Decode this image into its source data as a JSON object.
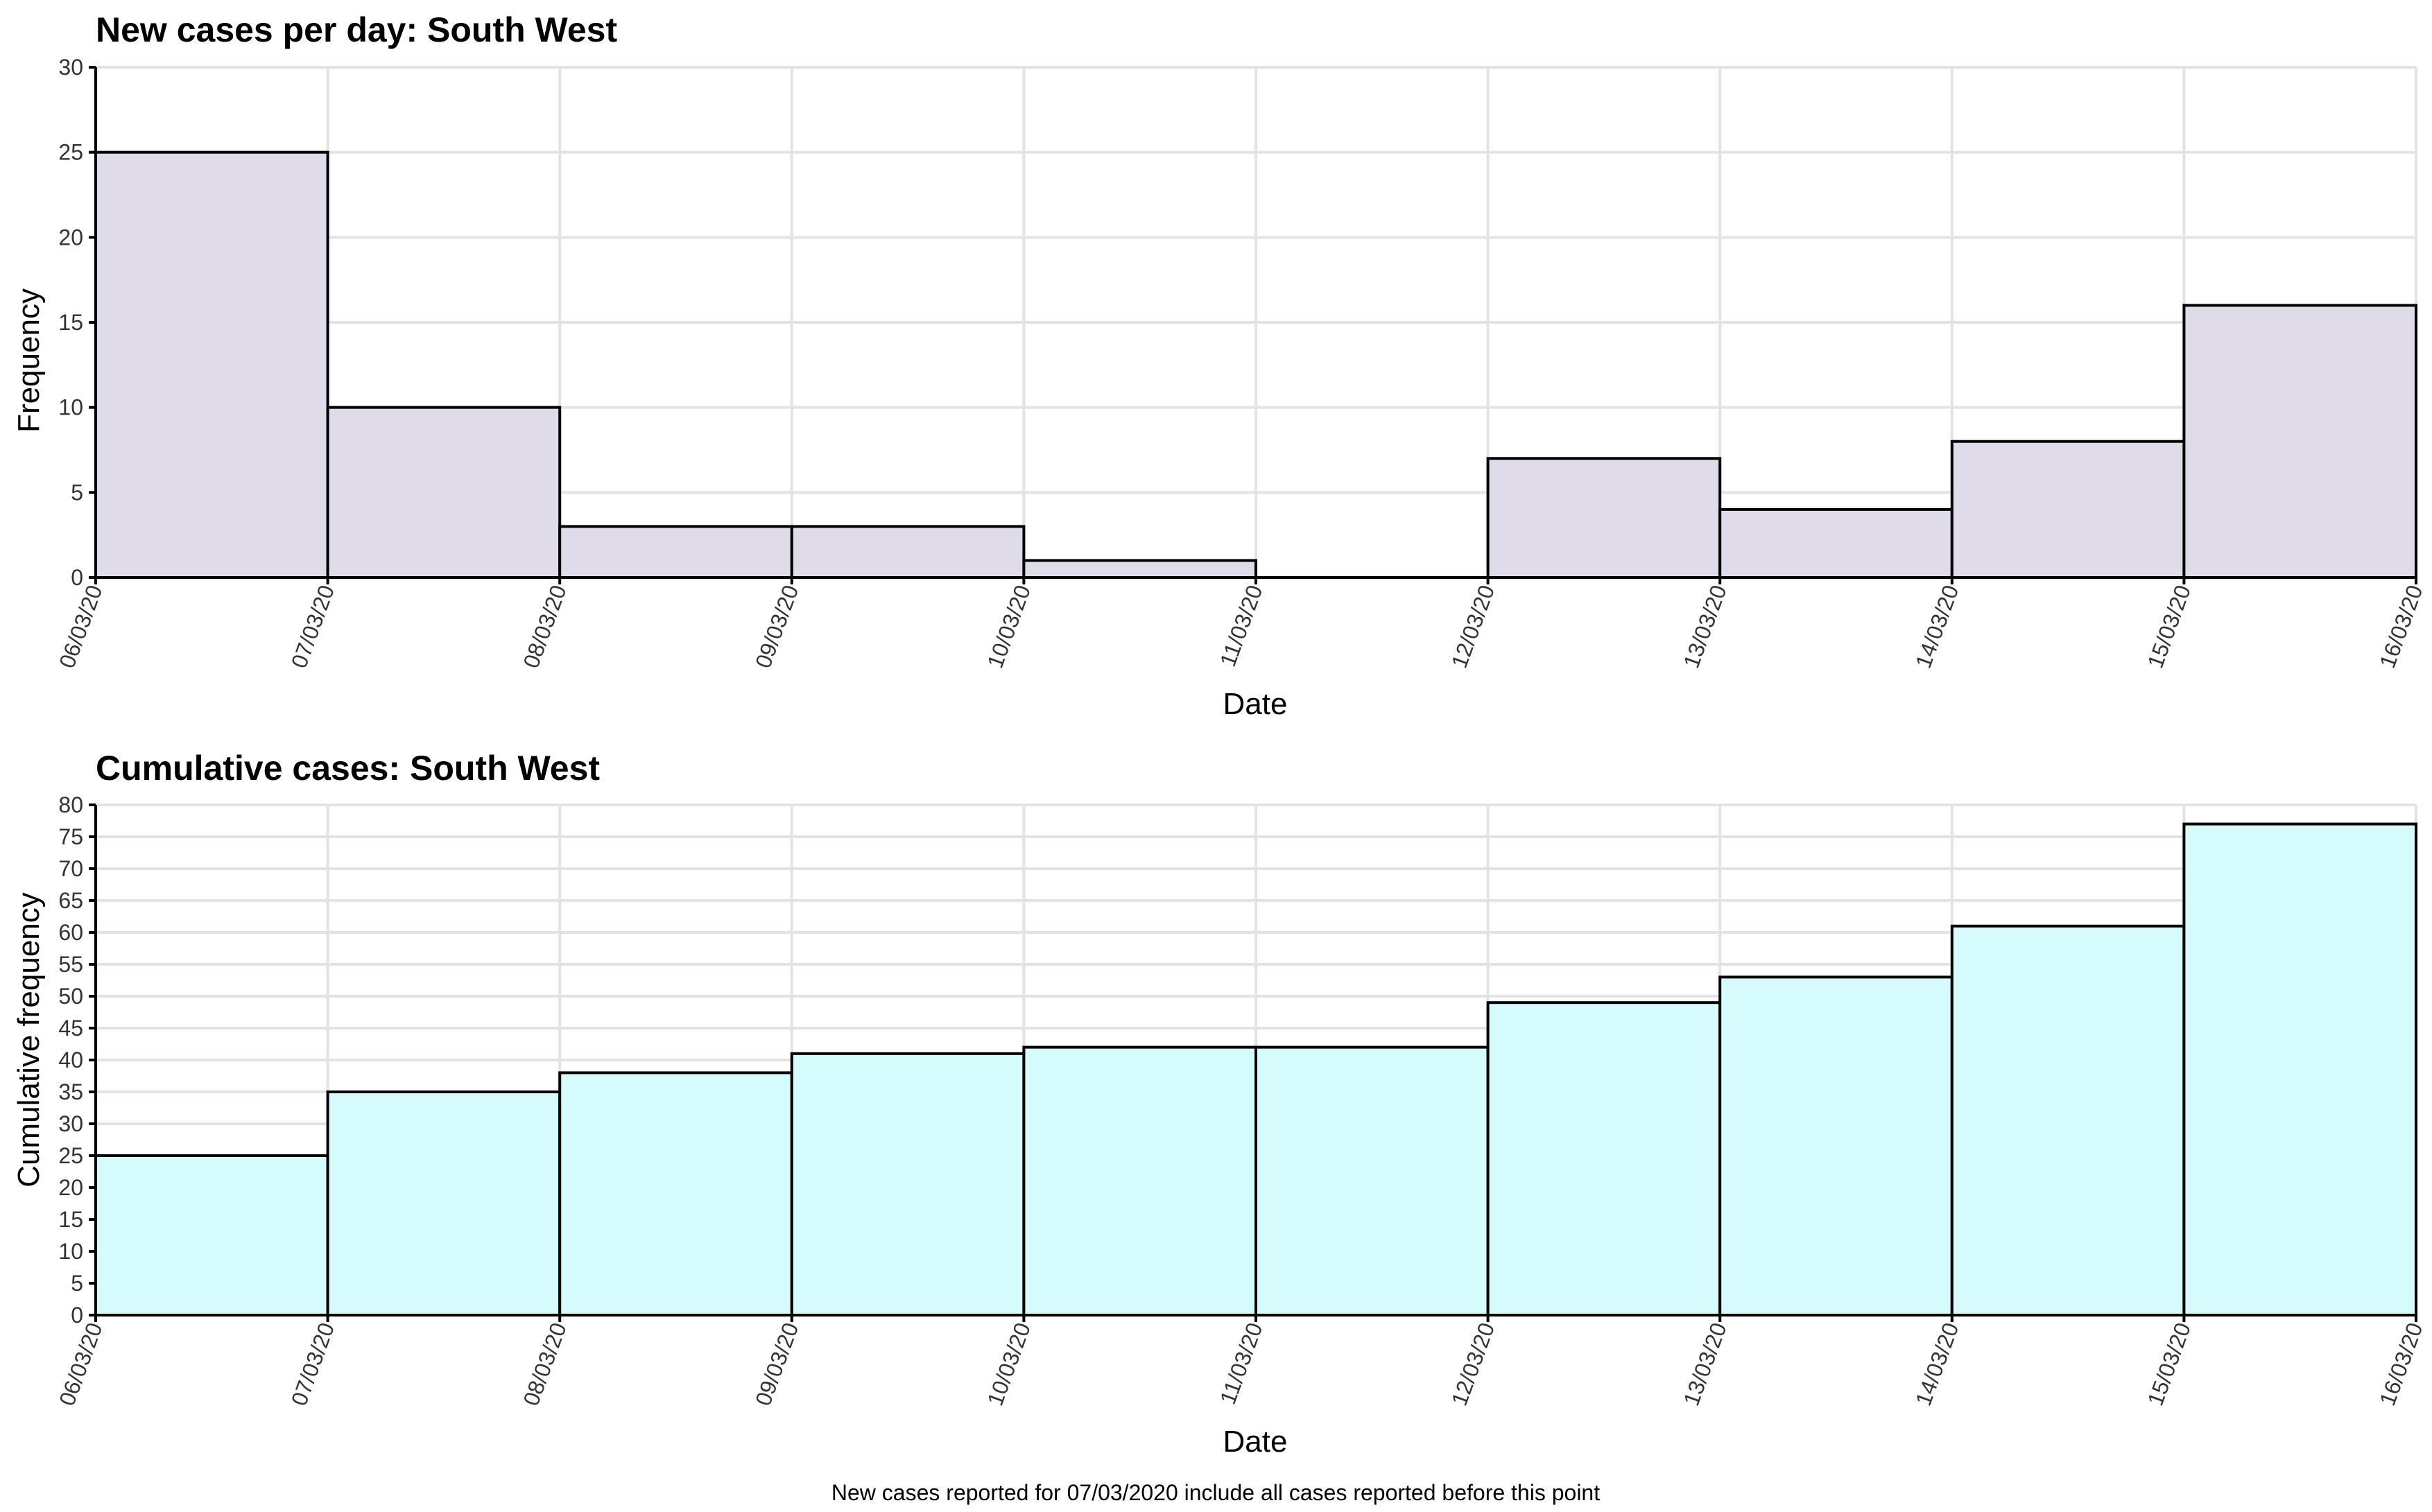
{
  "caption": "New cases reported for 07/03/2020 include all cases reported before this point",
  "chart_data": [
    {
      "type": "bar",
      "title": "New cases per day: South West",
      "xlabel": "Date",
      "ylabel": "Frequency",
      "bin_edges": [
        "06/03/20",
        "07/03/20",
        "08/03/20",
        "09/03/20",
        "10/03/20",
        "11/03/20",
        "12/03/20",
        "13/03/20",
        "14/03/20",
        "15/03/20",
        "16/03/20"
      ],
      "values": [
        25,
        10,
        3,
        3,
        1,
        0,
        7,
        4,
        8,
        16
      ],
      "ylim": [
        0,
        30
      ],
      "ytick_step": 5,
      "fill": "#e0dbe9",
      "grid": true
    },
    {
      "type": "bar",
      "title": "Cumulative cases: South West",
      "xlabel": "Date",
      "ylabel": "Cumulative frequency",
      "bin_edges": [
        "06/03/20",
        "07/03/20",
        "08/03/20",
        "09/03/20",
        "10/03/20",
        "11/03/20",
        "12/03/20",
        "13/03/20",
        "14/03/20",
        "15/03/20",
        "16/03/20"
      ],
      "values": [
        25,
        35,
        38,
        41,
        42,
        42,
        49,
        53,
        61,
        77
      ],
      "ylim": [
        0,
        80
      ],
      "ytick_step": 5,
      "fill": "#d6fbfd",
      "grid": true
    }
  ]
}
